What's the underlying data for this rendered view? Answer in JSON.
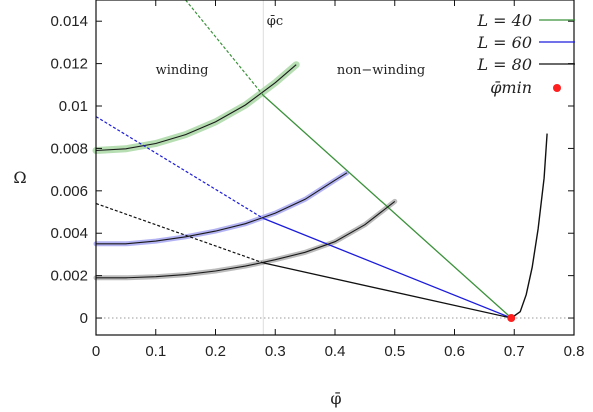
{
  "chart_data": {
    "type": "line",
    "xlabel": "φ̄",
    "ylabel": "Ω",
    "xlim": [
      0,
      0.8
    ],
    "ylim": [
      -0.0008,
      0.015
    ],
    "x_ticks": [
      "0",
      "0.1",
      "0.2",
      "0.3",
      "0.4",
      "0.5",
      "0.6",
      "0.7",
      "0.8"
    ],
    "y_ticks": [
      "0",
      "0.002",
      "0.004",
      "0.006",
      "0.008",
      "0.01",
      "0.012",
      "0.014"
    ],
    "x_tick_values": [
      0,
      0.1,
      0.2,
      0.3,
      0.4,
      0.5,
      0.6,
      0.7,
      0.8
    ],
    "y_tick_values": [
      0,
      0.002,
      0.004,
      0.006,
      0.008,
      0.01,
      0.012,
      0.014
    ],
    "phi_c": 0.28,
    "phi_c_label": "φ̄c",
    "region_labels": [
      "winding",
      "non−winding"
    ],
    "region_label_positions": [
      [
        0.145,
        0.0121
      ],
      [
        0.48,
        0.0121
      ]
    ],
    "phi_min": 0.695,
    "phi_min_label": "φ̄min",
    "colors": {
      "L40": "#3a913a",
      "L60": "#1c1cdc",
      "L80": "#111111",
      "phi_min": "#ff1f1f",
      "band_L40": "#a9d8a5",
      "band_L60": "#a6a6f2",
      "band_L80": "#b0b0b0",
      "phi_c_line": "#dddddd",
      "zero_line": "#999999"
    },
    "legend_position": "top-right",
    "series": [
      {
        "name": "L = 40",
        "winding": {
          "x": [
            0,
            0.05,
            0.1,
            0.15,
            0.2,
            0.25,
            0.3,
            0.335
          ],
          "y": [
            0.0079,
            0.00798,
            0.00823,
            0.00865,
            0.00925,
            0.01005,
            0.0111,
            0.01195
          ]
        },
        "nonwinding_dashed": {
          "x": [
            0.15,
            0.28
          ],
          "y": [
            0.015,
            0.0105
          ]
        },
        "nonwinding_solid": {
          "x": [
            0.28,
            0.695
          ],
          "y": [
            0.0105,
            0.0
          ]
        }
      },
      {
        "name": "L = 60",
        "winding": {
          "x": [
            0,
            0.05,
            0.1,
            0.15,
            0.2,
            0.25,
            0.3,
            0.35,
            0.4,
            0.42
          ],
          "y": [
            0.0035,
            0.0035,
            0.00363,
            0.00383,
            0.0041,
            0.00445,
            0.00495,
            0.0056,
            0.0065,
            0.00685
          ]
        },
        "nonwinding_dashed": {
          "x": [
            0,
            0.28
          ],
          "y": [
            0.0095,
            0.0047
          ]
        },
        "nonwinding_solid": {
          "x": [
            0.28,
            0.695
          ],
          "y": [
            0.0047,
            0.0
          ]
        }
      },
      {
        "name": "L = 80",
        "winding": {
          "x": [
            0,
            0.05,
            0.1,
            0.15,
            0.2,
            0.25,
            0.3,
            0.35,
            0.4,
            0.45,
            0.5
          ],
          "y": [
            0.0019,
            0.0019,
            0.00195,
            0.00205,
            0.00222,
            0.00245,
            0.00275,
            0.0031,
            0.0036,
            0.0044,
            0.0055
          ]
        },
        "nonwinding_dashed": {
          "x": [
            0,
            0.28
          ],
          "y": [
            0.0054,
            0.0026
          ]
        },
        "nonwinding_solid": {
          "x": [
            0.28,
            0.695
          ],
          "y": [
            0.0026,
            0.0
          ]
        },
        "spinodal": {
          "x": [
            0.695,
            0.71,
            0.72,
            0.73,
            0.74,
            0.75,
            0.755
          ],
          "y": [
            0.0,
            0.0003,
            0.0011,
            0.0024,
            0.0042,
            0.0066,
            0.0087
          ]
        }
      }
    ],
    "phi_min_point": {
      "x": 0.695,
      "y": 0.0
    }
  }
}
